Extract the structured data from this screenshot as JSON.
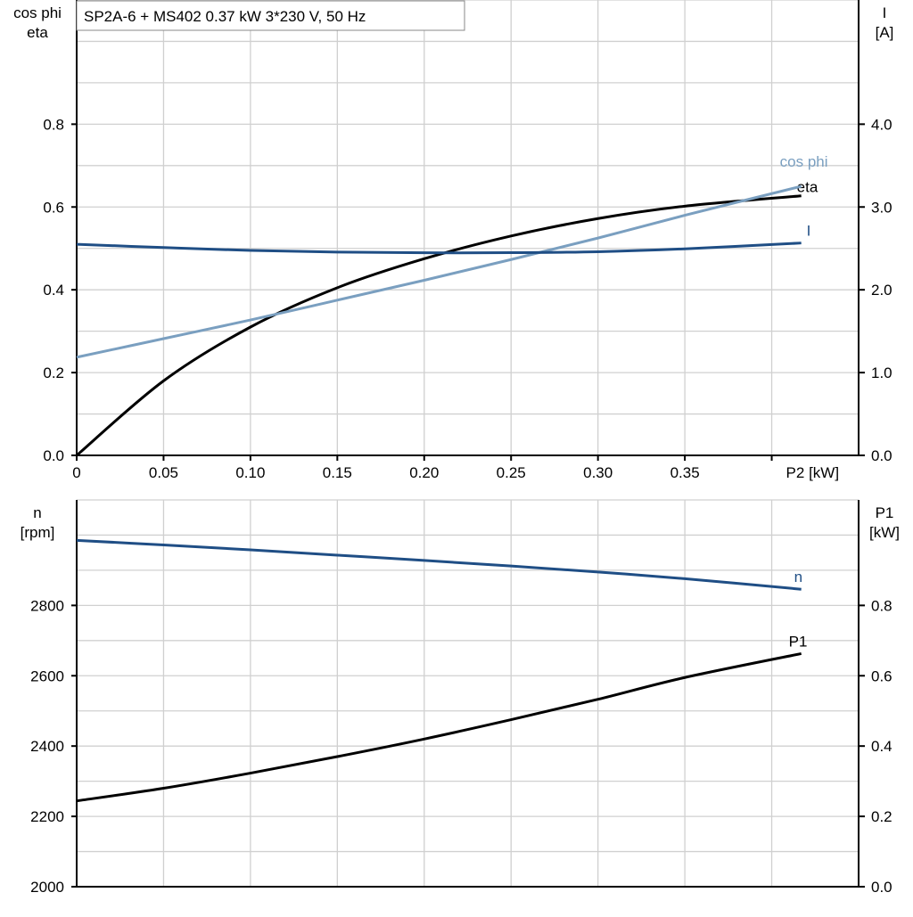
{
  "title": "SP2A-6 + MS402   0.37 kW   3*230 V, 50 Hz",
  "chart_data": [
    {
      "type": "line",
      "xlabel": "P2 [kW]",
      "xlim": [
        0,
        0.45
      ],
      "x_ticks": [
        "0",
        "0.05",
        "0.10",
        "0.15",
        "0.20",
        "0.25",
        "0.30",
        "0.35"
      ],
      "ylabel_left": [
        "cos phi",
        "eta"
      ],
      "ylim_left": [
        0,
        1.1
      ],
      "y_ticks_left": [
        "0.0",
        "0.2",
        "0.4",
        "0.6",
        "0.8"
      ],
      "ylabel_right": [
        "I",
        "[A]"
      ],
      "ylim_right": [
        0,
        5.5
      ],
      "y_ticks_right": [
        "0.0",
        "1.0",
        "2.0",
        "3.0",
        "4.0"
      ],
      "grid": true,
      "series": [
        {
          "name": "eta",
          "axis": "left",
          "color": "#000000",
          "x": [
            0,
            0.05,
            0.1,
            0.15,
            0.2,
            0.25,
            0.3,
            0.35,
            0.417
          ],
          "y": [
            0,
            0.18,
            0.31,
            0.405,
            0.475,
            0.53,
            0.572,
            0.602,
            0.627
          ]
        },
        {
          "name": "cos phi",
          "axis": "left",
          "color": "#7a9fc0",
          "x": [
            0,
            0.05,
            0.1,
            0.15,
            0.2,
            0.25,
            0.3,
            0.35,
            0.417
          ],
          "y": [
            0.237,
            0.282,
            0.327,
            0.375,
            0.423,
            0.473,
            0.525,
            0.58,
            0.65
          ]
        },
        {
          "name": "I",
          "axis": "right",
          "color": "#1f4e85",
          "x": [
            0,
            0.05,
            0.1,
            0.15,
            0.2,
            0.25,
            0.3,
            0.35,
            0.417
          ],
          "y": [
            2.55,
            2.51,
            2.475,
            2.455,
            2.447,
            2.448,
            2.46,
            2.495,
            2.565
          ]
        }
      ]
    },
    {
      "type": "line",
      "xlim": [
        0,
        0.45
      ],
      "ylabel_left": [
        "n",
        "[rpm]"
      ],
      "ylim_left": [
        2000,
        3100
      ],
      "y_ticks_left": [
        "2000",
        "2200",
        "2400",
        "2600",
        "2800"
      ],
      "ylabel_right": [
        "P1",
        "[kW]"
      ],
      "ylim_right": [
        0,
        1.1
      ],
      "y_ticks_right": [
        "0.0",
        "0.2",
        "0.4",
        "0.6",
        "0.8"
      ],
      "grid": true,
      "series": [
        {
          "name": "n",
          "axis": "left",
          "color": "#1f4e85",
          "x": [
            0,
            0.05,
            0.1,
            0.15,
            0.2,
            0.25,
            0.3,
            0.35,
            0.417
          ],
          "y": [
            2985,
            2972,
            2958,
            2943,
            2928,
            2912,
            2895,
            2876,
            2846
          ]
        },
        {
          "name": "P1",
          "axis": "right",
          "color": "#000000",
          "x": [
            0,
            0.05,
            0.1,
            0.15,
            0.2,
            0.25,
            0.3,
            0.35,
            0.417
          ],
          "y": [
            0.244,
            0.28,
            0.323,
            0.37,
            0.42,
            0.475,
            0.533,
            0.595,
            0.663
          ]
        }
      ]
    }
  ]
}
